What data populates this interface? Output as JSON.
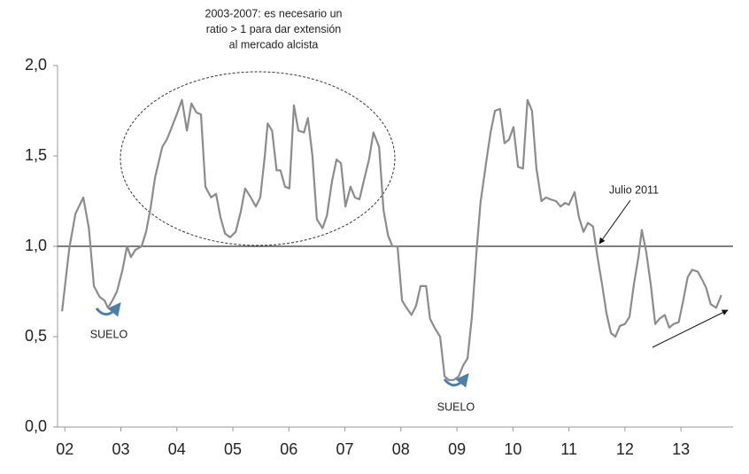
{
  "chart_data": {
    "type": "line",
    "color": "#8c8c8c",
    "reference_line": 1,
    "xlim": [
      2001.87,
      2013.93
    ],
    "xticks": [
      {
        "value": 2002,
        "label": "02"
      },
      {
        "value": 2003,
        "label": "03"
      },
      {
        "value": 2004,
        "label": "04"
      },
      {
        "value": 2005,
        "label": "05"
      },
      {
        "value": 2006,
        "label": "06"
      },
      {
        "value": 2007,
        "label": "07"
      },
      {
        "value": 2008,
        "label": "08"
      },
      {
        "value": 2009,
        "label": "09"
      },
      {
        "value": 2010,
        "label": "10"
      },
      {
        "value": 2011,
        "label": "11"
      },
      {
        "value": 2012,
        "label": "12"
      },
      {
        "value": 2013,
        "label": "13"
      }
    ],
    "ylim": [
      0,
      2
    ],
    "yticks": [
      {
        "value": 0,
        "label": "0,0"
      },
      {
        "value": 0.5,
        "label": "0,5"
      },
      {
        "value": 1,
        "label": "1,0"
      },
      {
        "value": 1.5,
        "label": "1,5"
      },
      {
        "value": 2,
        "label": "2,0"
      }
    ],
    "annotations": [
      {
        "lines": [
          "2003-2007: es necesario un",
          "ratio > 1 para dar extensión",
          "al mercado alcista"
        ]
      },
      {
        "lines": [
          "SUELO"
        ]
      },
      {
        "lines": [
          "SUELO"
        ]
      },
      {
        "lines": [
          "Julio 2011"
        ]
      }
    ],
    "x": [
      2001.95,
      2002.08,
      2002.19,
      2002.33,
      2002.43,
      2002.52,
      2002.62,
      2002.71,
      2002.77,
      2002.85,
      2002.93,
      2003.03,
      2003.11,
      2003.18,
      2003.26,
      2003.37,
      2003.45,
      2003.53,
      2003.61,
      2003.74,
      2003.82,
      2003.91,
      2004.01,
      2004.09,
      2004.18,
      2004.26,
      2004.35,
      2004.43,
      2004.51,
      2004.61,
      2004.7,
      2004.78,
      2004.86,
      2004.95,
      2005.05,
      2005.14,
      2005.22,
      2005.32,
      2005.41,
      2005.49,
      2005.57,
      2005.62,
      2005.7,
      2005.78,
      2005.85,
      2005.93,
      2006.01,
      2006.09,
      2006.17,
      2006.27,
      2006.34,
      2006.42,
      2006.5,
      2006.6,
      2006.68,
      2006.77,
      2006.85,
      2006.93,
      2007.01,
      2007.1,
      2007.18,
      2007.26,
      2007.36,
      2007.43,
      2007.51,
      2007.61,
      2007.69,
      2007.77,
      2007.85,
      2007.94,
      2008.02,
      2008.1,
      2008.19,
      2008.27,
      2008.35,
      2008.45,
      2008.52,
      2008.6,
      2008.7,
      2008.78,
      2008.86,
      2008.94,
      2009.03,
      2009.11,
      2009.19,
      2009.27,
      2009.35,
      2009.42,
      2009.52,
      2009.6,
      2009.68,
      2009.77,
      2009.85,
      2009.93,
      2010.01,
      2010.09,
      2010.18,
      2010.26,
      2010.34,
      2010.42,
      2010.51,
      2010.59,
      2010.67,
      2010.77,
      2010.85,
      2010.93,
      2011.0,
      2011.1,
      2011.18,
      2011.26,
      2011.34,
      2011.43,
      2011.51,
      2011.59,
      2011.67,
      2011.75,
      2011.83,
      2011.91,
      2012.0,
      2012.08,
      2012.16,
      2012.24,
      2012.3,
      2012.38,
      2012.46,
      2012.54,
      2012.62,
      2012.71,
      2012.79,
      2012.87,
      2012.96,
      2013.04,
      2013.12,
      2013.2,
      2013.3,
      2013.37,
      2013.45,
      2013.53,
      2013.63,
      2013.72
    ],
    "values": [
      0.64,
      0.99,
      1.18,
      1.27,
      1.1,
      0.78,
      0.72,
      0.7,
      0.66,
      0.7,
      0.75,
      0.87,
      1.0,
      0.94,
      0.98,
      1.0,
      1.08,
      1.21,
      1.38,
      1.55,
      1.59,
      1.66,
      1.74,
      1.81,
      1.64,
      1.79,
      1.74,
      1.73,
      1.33,
      1.27,
      1.29,
      1.16,
      1.07,
      1.05,
      1.08,
      1.19,
      1.32,
      1.27,
      1.22,
      1.27,
      1.5,
      1.68,
      1.64,
      1.42,
      1.42,
      1.33,
      1.32,
      1.78,
      1.64,
      1.63,
      1.71,
      1.5,
      1.15,
      1.1,
      1.17,
      1.36,
      1.48,
      1.46,
      1.22,
      1.33,
      1.27,
      1.26,
      1.39,
      1.48,
      1.63,
      1.55,
      1.2,
      1.06,
      1.0,
      1.0,
      0.7,
      0.66,
      0.62,
      0.67,
      0.78,
      0.78,
      0.6,
      0.55,
      0.5,
      0.28,
      0.26,
      0.26,
      0.28,
      0.34,
      0.38,
      0.62,
      0.97,
      1.24,
      1.46,
      1.63,
      1.75,
      1.76,
      1.57,
      1.59,
      1.66,
      1.44,
      1.43,
      1.81,
      1.75,
      1.43,
      1.25,
      1.27,
      1.26,
      1.25,
      1.22,
      1.24,
      1.23,
      1.3,
      1.16,
      1.08,
      1.13,
      1.11,
      0.94,
      0.79,
      0.63,
      0.52,
      0.5,
      0.56,
      0.57,
      0.61,
      0.79,
      0.94,
      1.09,
      0.97,
      0.79,
      0.57,
      0.6,
      0.62,
      0.55,
      0.57,
      0.58,
      0.7,
      0.83,
      0.87,
      0.86,
      0.82,
      0.77,
      0.68,
      0.66,
      0.73
    ]
  }
}
